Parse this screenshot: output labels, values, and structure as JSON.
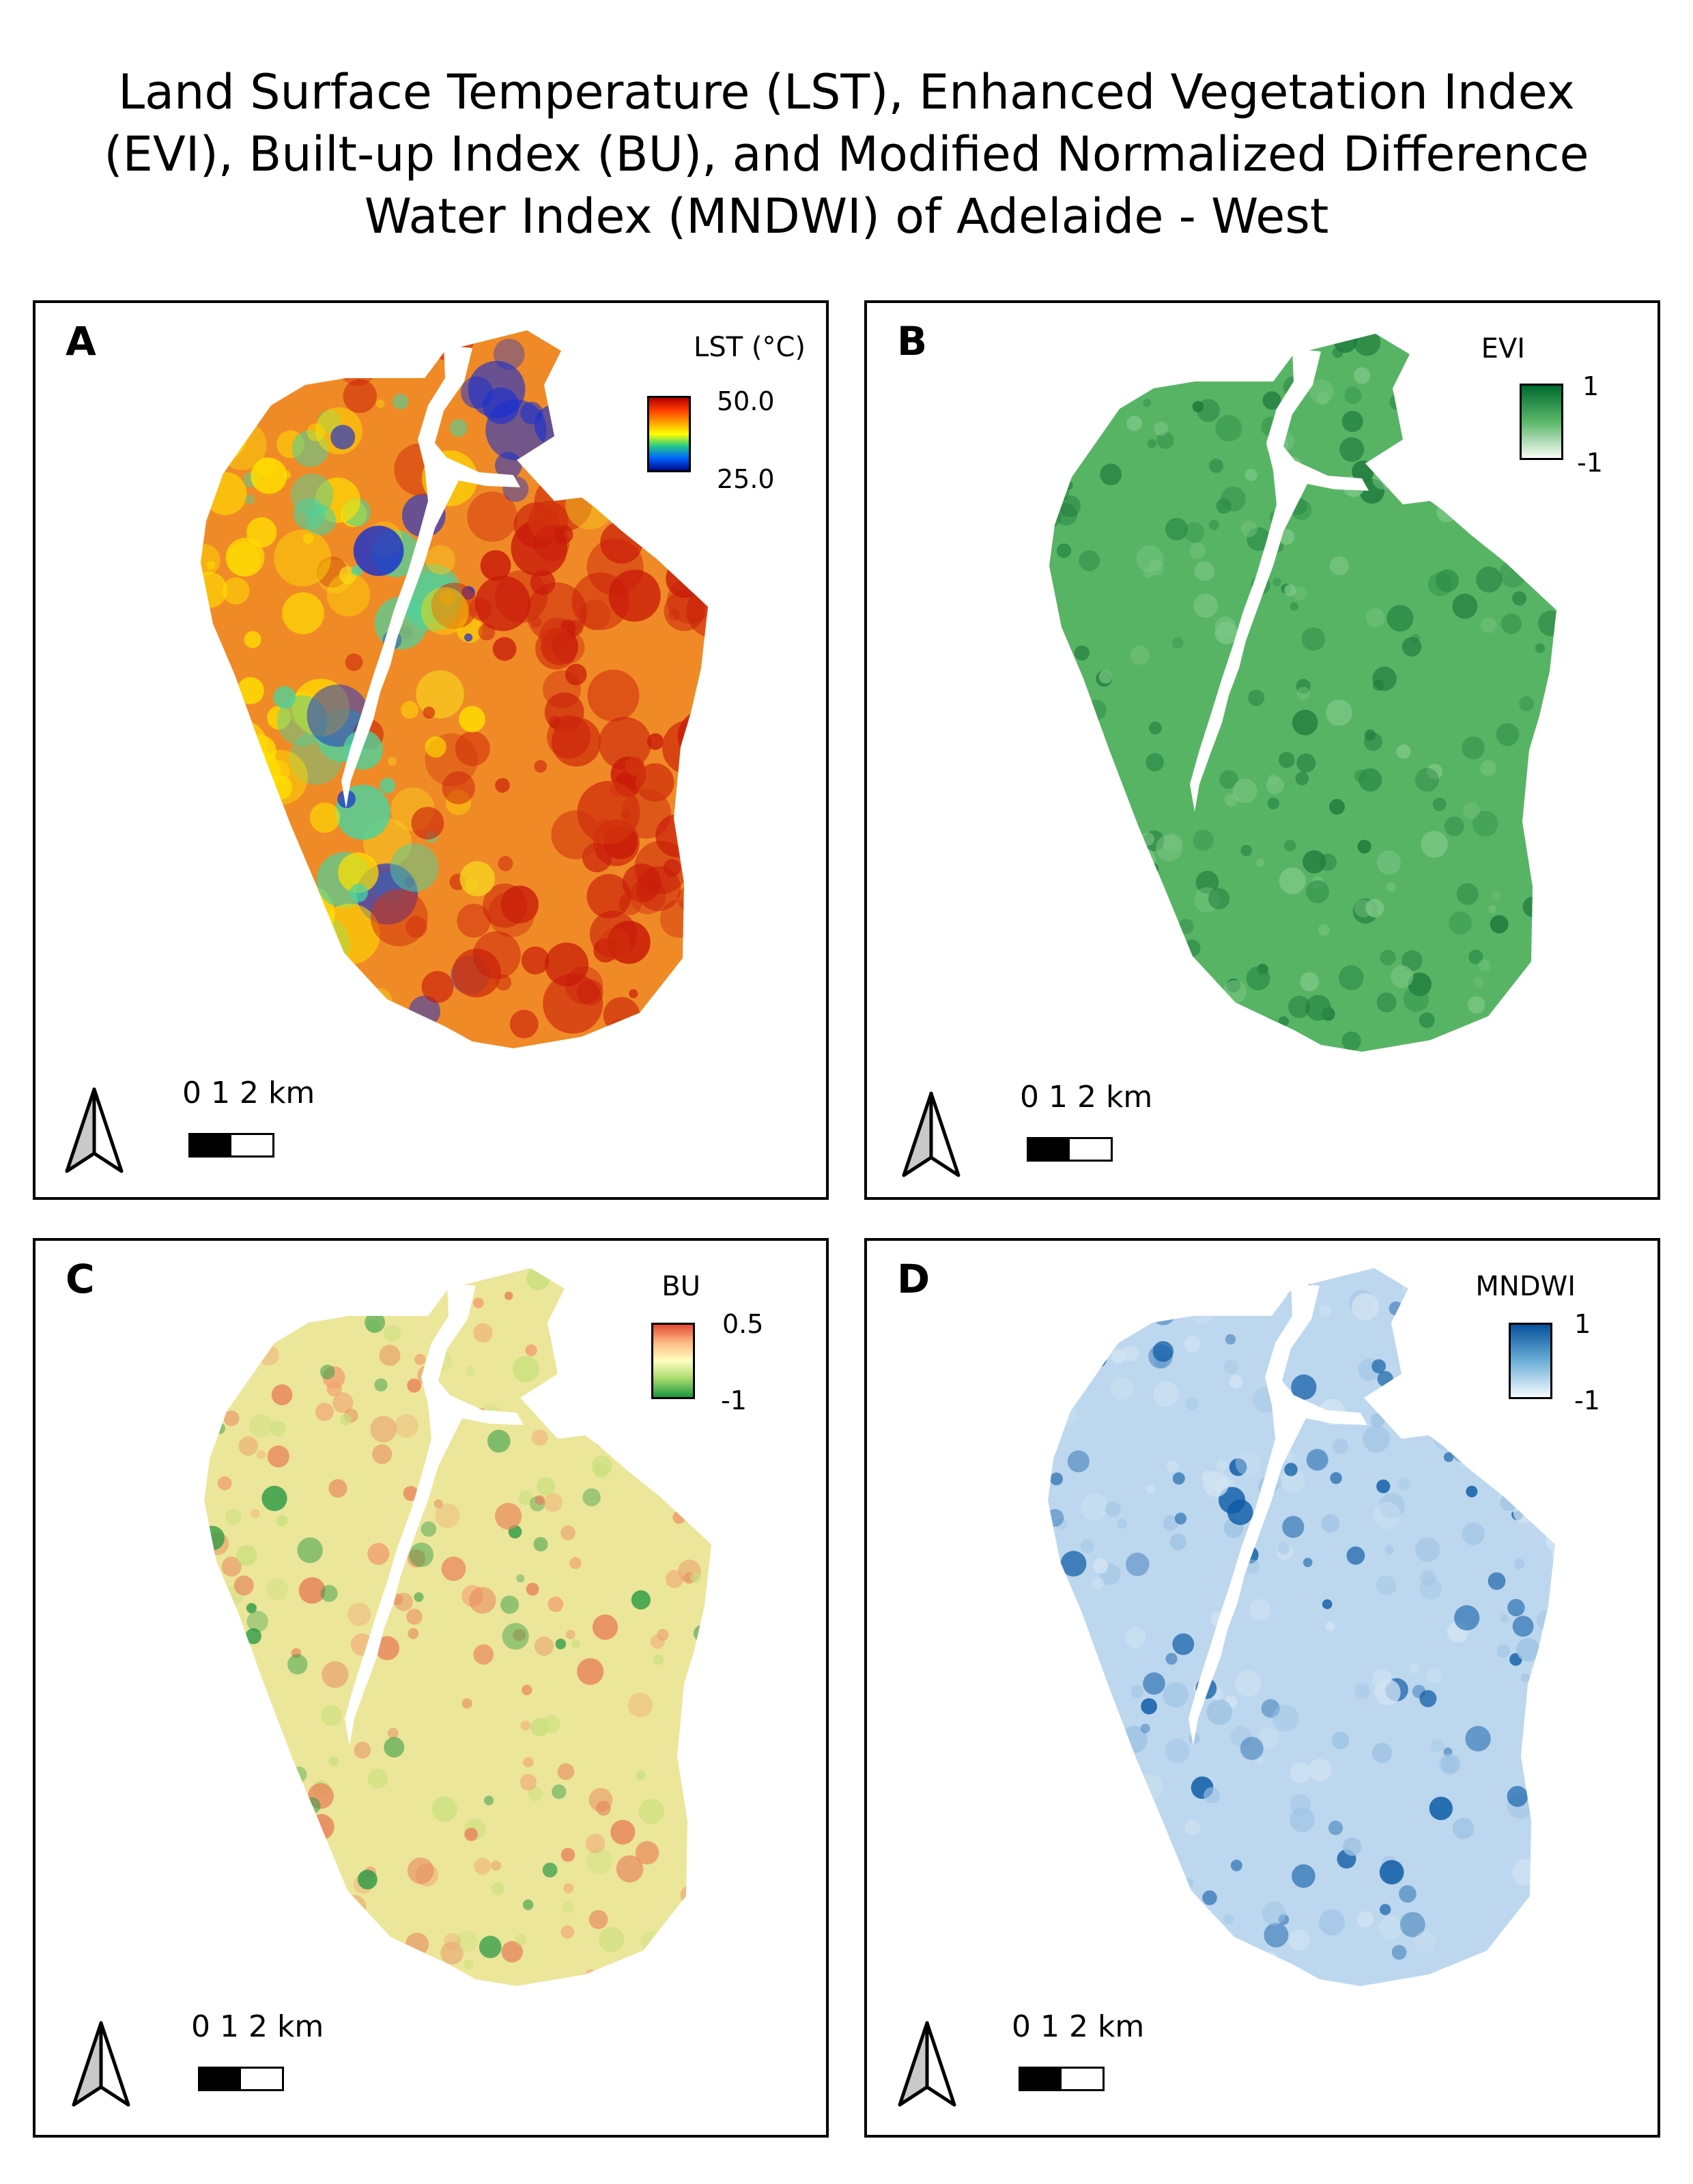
{
  "title_lines": [
    "Land Surface Temperature (LST), Enhanced Vegetation Index",
    "(EVI), Built-up Index (BU), and Modified Normalized Difference",
    "Water Index (MNDWI) of Adelaide - West"
  ],
  "panels": [
    {
      "letter": "A",
      "legend_title": "LST (°C)",
      "legend_max": "50.0",
      "legend_min": "25.0",
      "scale_text": "0   1   2 km",
      "base_color": "#f08a26",
      "ramp_colors": [
        "#b10000",
        "#ff3a00",
        "#ff9d00",
        "#ffff00",
        "#22c98a",
        "#0064ff",
        "#000a8c"
      ],
      "accent_colors": [
        "#c81a0a",
        "#ffe000",
        "#4fd29b",
        "#1a2fd0",
        "#d1330d",
        "#f6d020"
      ]
    },
    {
      "letter": "B",
      "legend_title": "EVI",
      "legend_max": "1",
      "legend_min": "-1",
      "scale_text": "0   1   2 km",
      "base_color": "#58b465",
      "ramp_colors": [
        "#006a2f",
        "#5ab769",
        "#f7fcf5"
      ],
      "accent_colors": [
        "#2a8a46",
        "#7cc786",
        "#1f7a3c"
      ]
    },
    {
      "letter": "C",
      "legend_title": "BU",
      "legend_max": "0.5",
      "legend_min": "-1",
      "scale_text": "0   1   2 km",
      "base_color": "#ece69a",
      "ramp_colors": [
        "#e34a33",
        "#fdbb84",
        "#ffffbf",
        "#a6d96a",
        "#1a9641"
      ],
      "accent_colors": [
        "#f2a272",
        "#2b9a45",
        "#c9e07d",
        "#e8825a"
      ]
    },
    {
      "letter": "D",
      "legend_title": "MNDWI",
      "legend_max": "1",
      "legend_min": "-1",
      "scale_text": "0   1   2 km",
      "base_color": "#bdd7ee",
      "ramp_colors": [
        "#08519c",
        "#6baed6",
        "#f7fbff"
      ],
      "accent_colors": [
        "#9ec3e4",
        "#0b5aa5",
        "#d2e4f3"
      ]
    }
  ]
}
